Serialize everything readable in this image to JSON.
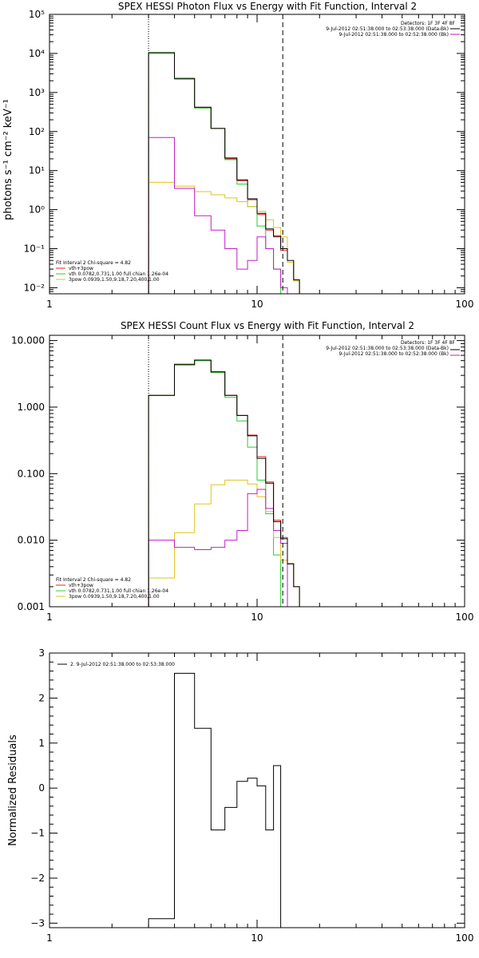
{
  "colors": {
    "axes": "#000000",
    "total": "#000000",
    "vth_3pow": "#e8201c",
    "vth": "#22d12a",
    "pow3": "#e0c21d",
    "bk": "#c01ec8",
    "residual": "#000000"
  },
  "chart_data": [
    {
      "id": "photon",
      "type": "line",
      "title": "SPEX HESSI Photon Flux vs Energy with Fit Function, Interval 2",
      "ylabel": "photons s⁻¹ cm⁻² keV⁻¹",
      "xlabel": "",
      "xscale": "log",
      "yscale": "log",
      "xlim": [
        1,
        100
      ],
      "ylim": [
        0.007,
        100000
      ],
      "xticks": [
        1,
        10,
        100
      ],
      "xtick_labels": [
        "1",
        "10",
        "100"
      ],
      "yticks": [
        0.01,
        0.1,
        1,
        10,
        100,
        1000,
        10000,
        100000
      ],
      "ytick_labels": [
        "10⁻²",
        "10⁻¹",
        "10⁰",
        "10¹",
        "10²",
        "10³",
        "10⁴",
        "10⁵"
      ],
      "vlines": [
        {
          "x": 3.0,
          "style": "dotted"
        },
        {
          "x": 13.3,
          "style": "dashed"
        }
      ],
      "edges": [
        3.0,
        4.0,
        5.0,
        6.0,
        7.0,
        8.0,
        9.0,
        10.0,
        11.0,
        12.0,
        13.0,
        14.0,
        15.0,
        16.0,
        17.0,
        18.0,
        19.0,
        20.0
      ],
      "legend_top": {
        "line1": "Detectors: 1F 3F 4F 8F",
        "line2": "9-Jul-2012 02:51:38.000 to 02:53:38.000 (Data-Bk)",
        "line3": "9-Jul-2012 02:51:38.000 to 02:52:38.000 (Bk)"
      },
      "legend_bottom": {
        "header": "Fit Interval 2   Chi-square = 4.82",
        "items": [
          "vth+3pow",
          "vth 0.0782,0.731,1.00  full chian 1.26e-04",
          "3pow 0.0939,1.50,9.18,7.20,400,1.00"
        ]
      },
      "series": [
        {
          "name": "vth+3pow",
          "color_key": "vth_3pow",
          "values": [
            10000,
            2200,
            400,
            120,
            20,
            5.5,
            1.8,
            0.75,
            0.3,
            0.2,
            0.09,
            0.045,
            0.015,
            null,
            null,
            null,
            null
          ]
        },
        {
          "name": "vth",
          "color_key": "vth",
          "values": [
            10000,
            2200,
            400,
            120,
            19,
            4.5,
            1.2,
            0.38,
            0.1,
            0.03,
            0.007,
            null,
            null,
            null,
            null,
            null,
            null
          ]
        },
        {
          "name": "3pow",
          "color_key": "pow3",
          "values": [
            5,
            4,
            2.9,
            2.4,
            2.0,
            1.6,
            1.2,
            0.9,
            0.55,
            0.35,
            0.2,
            0.045,
            0.015,
            null,
            null,
            null,
            null
          ]
        },
        {
          "name": "",
          "color_key": "bk",
          "values": [
            70,
            3.5,
            0.7,
            0.3,
            0.1,
            0.03,
            0.05,
            0.2,
            0.1,
            0.03,
            0.01,
            null,
            null,
            null,
            null,
            null,
            null
          ]
        },
        {
          "name": "",
          "color_key": "total",
          "values": [
            10500,
            2300,
            420,
            120,
            21,
            5.8,
            1.9,
            0.8,
            0.32,
            0.21,
            0.1,
            0.05,
            0.016,
            null,
            null,
            null,
            null
          ]
        }
      ]
    },
    {
      "id": "count",
      "type": "line",
      "title": "SPEX HESSI Count Flux vs Energy with Fit Function, Interval 2",
      "ylabel": "",
      "xlabel": "",
      "xscale": "log",
      "yscale": "log",
      "xlim": [
        1,
        100
      ],
      "ylim": [
        0.001,
        12
      ],
      "xticks": [
        1,
        10,
        100
      ],
      "xtick_labels": [
        "1",
        "10",
        "100"
      ],
      "yticks": [
        0.001,
        0.01,
        0.1,
        1,
        10
      ],
      "ytick_labels": [
        "0.001",
        "0.010",
        "0.100",
        "1.000",
        "10.000"
      ],
      "vlines": [
        {
          "x": 3.0,
          "style": "dotted"
        },
        {
          "x": 13.3,
          "style": "dashed"
        }
      ],
      "edges": [
        3.0,
        4.0,
        5.0,
        6.0,
        7.0,
        8.0,
        9.0,
        10.0,
        11.0,
        12.0,
        13.0,
        14.0,
        15.0,
        16.0,
        17.0,
        18.0,
        19.0,
        20.0
      ],
      "legend_top": {
        "line1": "Detectors: 1F 3F 4F 8F",
        "line2": "9-Jul-2012 02:51:38.000 to 02:53:38.000 (Data-Bk)",
        "line3": "9-Jul-2012 02:51:38.000 to 02:52:38.000 (Bk)"
      },
      "legend_bottom": {
        "header": "Fit Interval 2   Chi-square = 4.82",
        "items": [
          "vth+3pow",
          "vth 0.0782,0.731,1.00  full chian 1.26e-04",
          "3pow 0.0939,1.50,9.18,7.20,400,1.00"
        ]
      },
      "series": [
        {
          "name": "vth+3pow",
          "color_key": "vth_3pow",
          "values": [
            1.5,
            4.3,
            5.0,
            3.4,
            1.5,
            0.75,
            0.38,
            0.18,
            0.075,
            0.02,
            0.011,
            0.0045,
            0.002,
            0.001,
            null,
            null,
            null
          ]
        },
        {
          "name": "vth",
          "color_key": "vth",
          "values": [
            1.5,
            4.3,
            5.0,
            3.3,
            1.4,
            0.62,
            0.25,
            0.08,
            0.025,
            0.006,
            0.0008,
            null,
            null,
            null,
            null,
            null,
            null
          ]
        },
        {
          "name": "3pow",
          "color_key": "pow3",
          "values": [
            0.0027,
            0.013,
            0.035,
            0.068,
            0.08,
            0.08,
            0.07,
            0.045,
            0.027,
            0.011,
            0.005,
            0.0045,
            0.002,
            0.001,
            null,
            null,
            null
          ]
        },
        {
          "name": "",
          "color_key": "bk",
          "values": [
            0.01,
            0.0078,
            0.0072,
            0.0078,
            0.01,
            0.014,
            0.05,
            0.058,
            0.03,
            0.014,
            0.009,
            null,
            null,
            null,
            null,
            null,
            null
          ]
        },
        {
          "name": "",
          "color_key": "total",
          "values": [
            1.5,
            4.4,
            5.1,
            3.4,
            1.5,
            0.75,
            0.37,
            0.17,
            0.072,
            0.019,
            0.0105,
            0.0044,
            0.002,
            null,
            null,
            null,
            null
          ]
        }
      ]
    },
    {
      "id": "residuals",
      "type": "line",
      "title": "",
      "ylabel": "Normalized Residuals",
      "xlabel": "",
      "xscale": "log",
      "yscale": "linear",
      "xlim": [
        1,
        100
      ],
      "ylim": [
        -3.1,
        3.0
      ],
      "xticks": [
        1,
        10,
        100
      ],
      "xtick_labels": [
        "1",
        "10",
        "100"
      ],
      "yticks": [
        -3,
        -2,
        -1,
        0,
        1,
        2,
        3
      ],
      "ytick_labels": [
        "−3",
        "−2",
        "−1",
        "0",
        "1",
        "2",
        "3"
      ],
      "legend": "2.  9-Jul-2012 02:51:38.000 to 02:53:38.000",
      "edges": [
        3.0,
        4.0,
        5.0,
        6.0,
        7.0,
        8.0,
        9.0,
        10.0,
        11.0,
        12.0,
        13.0
      ],
      "series": [
        {
          "name": "",
          "color_key": "residual",
          "values": [
            -2.9,
            2.55,
            1.33,
            -0.93,
            -0.43,
            0.15,
            0.22,
            0.05,
            -0.93,
            0.5
          ]
        }
      ]
    }
  ]
}
